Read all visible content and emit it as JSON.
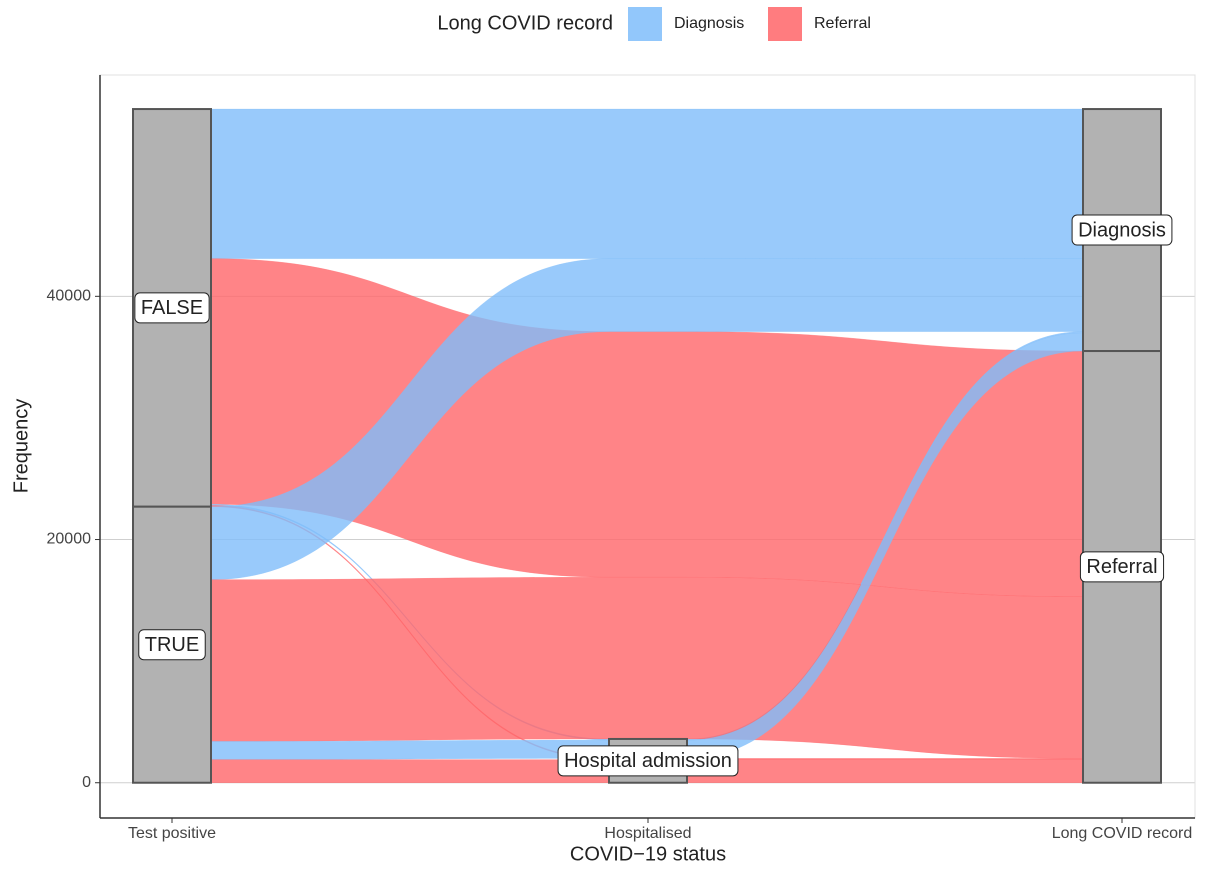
{
  "chart_data": {
    "type": "alluvial",
    "legend_title": "Long COVID record",
    "xlabel": "COVID−19 status",
    "ylabel": "Frequency",
    "ylim": [
      -2900,
      58200
    ],
    "yticks": [
      0,
      20000,
      40000
    ],
    "grid": true,
    "legend_position": "top",
    "axes": [
      {
        "name": "Test positive",
        "strata": [
          "FALSE",
          "TRUE"
        ]
      },
      {
        "name": "Hospitalised",
        "strata": [
          null,
          "Hospital admission"
        ]
      },
      {
        "name": "Long COVID record",
        "strata": [
          "Diagnosis",
          "Referral"
        ]
      }
    ],
    "series": [
      {
        "name": "Diagnosis",
        "color": "#7fbdfa"
      },
      {
        "name": "Referral",
        "color": "#ff6569"
      }
    ],
    "flows": [
      {
        "path": [
          0,
          0,
          0
        ],
        "value": 12300
      },
      {
        "path": [
          0,
          0,
          1
        ],
        "value": 20200
      },
      {
        "path": [
          0,
          1,
          0
        ],
        "value": 100
      },
      {
        "path": [
          0,
          1,
          1
        ],
        "value": 100
      },
      {
        "path": [
          1,
          0,
          0
        ],
        "value": 6000
      },
      {
        "path": [
          1,
          0,
          1
        ],
        "value": 13300
      },
      {
        "path": [
          1,
          1,
          0
        ],
        "value": 1500
      },
      {
        "path": [
          1,
          1,
          1
        ],
        "value": 1900
      }
    ]
  }
}
